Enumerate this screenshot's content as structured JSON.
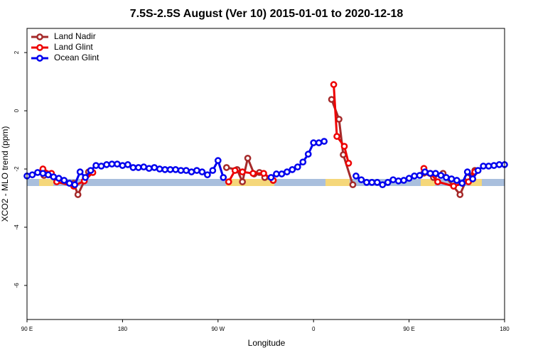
{
  "chart_data": {
    "type": "line",
    "title": "7.5S-2.5S August (Ver 10)   2015-01-01 to 2020-12-18",
    "x_label": "Longitude",
    "y_label": "XCO2 - MLO trend (ppm)",
    "xlim": [
      90,
      540
    ],
    "xticks": [
      {
        "value": 90,
        "label": "90 E"
      },
      180,
      {
        "value": 270,
        "label": "90 W"
      },
      {
        "value": 360,
        "label": "0"
      },
      {
        "value": 450,
        "label": "90 E"
      },
      {
        "value": 540,
        "label": "180"
      }
    ],
    "ylim": [
      -7.17,
      2.83
    ],
    "yticks": [
      2,
      0,
      -2,
      -4,
      -6
    ],
    "legend": "top-left",
    "series": [
      {
        "name": "Land Nadir",
        "color": "#a52a2a",
        "x": [
          106,
          134,
          138,
          148,
          200,
          278,
          288,
          293,
          298,
          304,
          309,
          314,
          322,
          350,
          377,
          384,
          388,
          397,
          430,
          464,
          473,
          482,
          498,
          505,
          512
        ],
        "values": [
          -2.22,
          -2.49,
          -2.88,
          -2.1,
          null,
          -1.95,
          -2.02,
          -2.44,
          -1.63,
          -2.17,
          -2.12,
          -2.29,
          -2.39,
          null,
          0.39,
          -0.29,
          -1.51,
          -2.54,
          null,
          -2.14,
          -2.29,
          -2.15,
          -2.88,
          -2.29,
          -2.05
        ]
      },
      {
        "name": "Land Glint",
        "color": "#ee0000",
        "x": [
          105,
          113,
          118,
          134,
          144,
          152,
          200,
          280,
          286,
          293,
          303,
          313,
          322,
          350,
          379,
          382,
          389,
          393,
          430,
          464,
          470,
          477,
          492,
          506,
          512
        ],
        "values": [
          -2.0,
          -2.15,
          -2.44,
          -2.59,
          -2.41,
          -2.12,
          null,
          -2.44,
          -2.05,
          -2.1,
          -2.15,
          -2.15,
          -2.39,
          null,
          0.9,
          -0.88,
          -1.22,
          -1.8,
          null,
          -1.98,
          -2.15,
          -2.44,
          -2.59,
          -2.44,
          -2.1
        ]
      },
      {
        "name": "Ocean Glint",
        "color": "#0000ee",
        "x": [
          90,
          95,
          100,
          105,
          110,
          115,
          120,
          125,
          130,
          135,
          140,
          145,
          150,
          155,
          160,
          165,
          170,
          175,
          180,
          185,
          190,
          195,
          200,
          205,
          210,
          215,
          220,
          225,
          230,
          235,
          240,
          245,
          250,
          255,
          260,
          265,
          270,
          275,
          300,
          320,
          325,
          330,
          335,
          340,
          345,
          350,
          355,
          360,
          365,
          370,
          385,
          400,
          405,
          410,
          415,
          420,
          425,
          430,
          435,
          440,
          445,
          450,
          455,
          460,
          465,
          470,
          475,
          480,
          485,
          490,
          495,
          500,
          505,
          510,
          515,
          520,
          525,
          530,
          535,
          540
        ],
        "values": [
          -2.24,
          -2.2,
          -2.12,
          -2.15,
          -2.2,
          -2.27,
          -2.32,
          -2.39,
          -2.49,
          -2.54,
          -2.1,
          -2.29,
          -2.05,
          -1.88,
          -1.9,
          -1.85,
          -1.83,
          -1.83,
          -1.88,
          -1.85,
          -1.95,
          -1.95,
          -1.93,
          -1.98,
          -1.95,
          -2.0,
          -2.02,
          -2.02,
          -2.02,
          -2.05,
          -2.05,
          -2.1,
          -2.05,
          -2.1,
          -2.2,
          -2.05,
          -1.71,
          -2.29,
          null,
          -2.29,
          -2.17,
          -2.17,
          -2.1,
          -2.02,
          -1.93,
          -1.76,
          -1.49,
          -1.1,
          -1.1,
          -1.05,
          null,
          -2.24,
          -2.37,
          -2.46,
          -2.46,
          -2.46,
          -2.54,
          -2.46,
          -2.37,
          -2.41,
          -2.39,
          -2.32,
          -2.24,
          -2.22,
          -2.1,
          -2.15,
          -2.15,
          -2.22,
          -2.29,
          -2.34,
          -2.39,
          -2.49,
          -2.1,
          -2.34,
          -2.05,
          -1.9,
          -1.9,
          -1.88,
          -1.85,
          -1.85
        ]
      }
    ]
  }
}
